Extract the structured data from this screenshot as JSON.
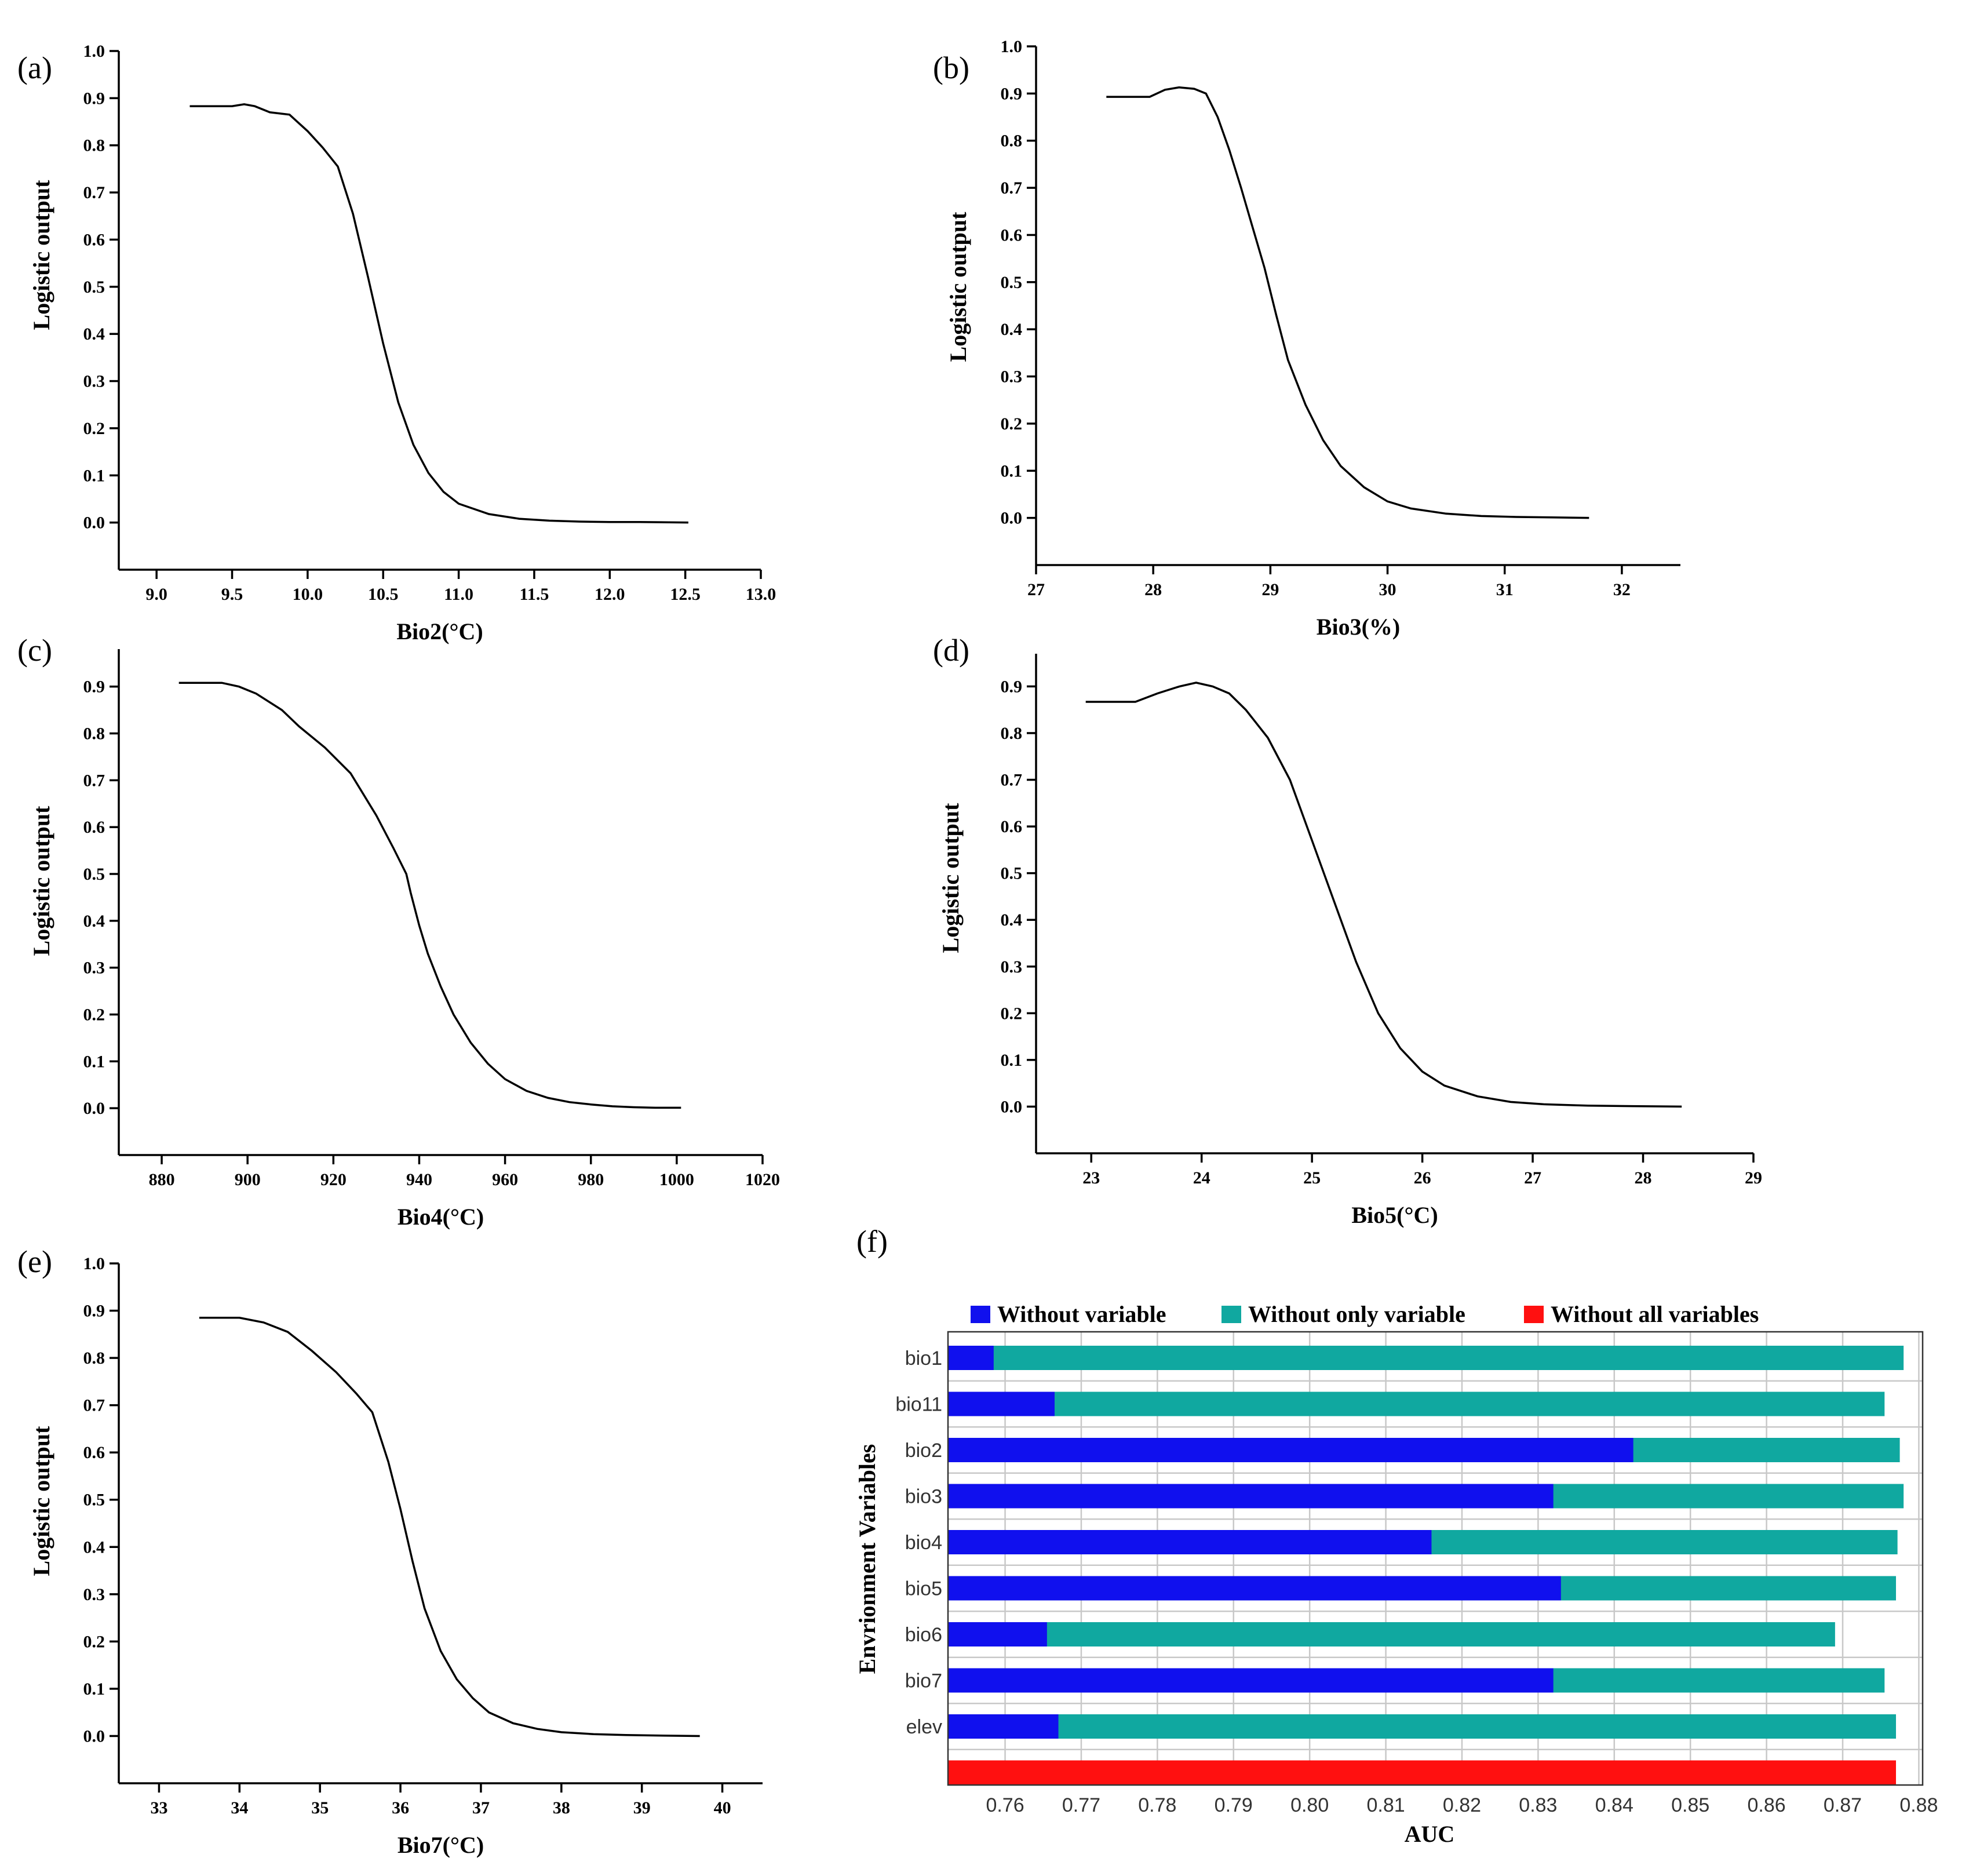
{
  "colors": {
    "without_variable": "#1010ee",
    "without_only_variable": "#10a8a0",
    "without_all_variables": "#ff1010"
  },
  "chart_data": [
    {
      "type": "line",
      "panel": "(a)",
      "xlabel": "Bio2(°C)",
      "ylabel": "Logistic output",
      "xlim": [
        8.75,
        13.0
      ],
      "ylim": [
        -0.1,
        1.0
      ],
      "xticks": [
        "9.0",
        "9.5",
        "10.0",
        "10.5",
        "11.0",
        "11.5",
        "12.0",
        "12.5",
        "13.0"
      ],
      "yticks": [
        "0.0",
        "0.1",
        "0.2",
        "0.3",
        "0.4",
        "0.5",
        "0.6",
        "0.7",
        "0.8",
        "0.9",
        "1.0"
      ],
      "x": [
        9.22,
        9.5,
        9.58,
        9.65,
        9.75,
        9.88,
        10.0,
        10.1,
        10.2,
        10.3,
        10.4,
        10.5,
        10.6,
        10.7,
        10.8,
        10.9,
        11.0,
        11.2,
        11.4,
        11.6,
        11.8,
        12.0,
        12.2,
        12.52
      ],
      "y": [
        0.883,
        0.883,
        0.887,
        0.883,
        0.87,
        0.865,
        0.83,
        0.795,
        0.755,
        0.655,
        0.52,
        0.38,
        0.255,
        0.165,
        0.105,
        0.065,
        0.04,
        0.018,
        0.008,
        0.004,
        0.002,
        0.001,
        0.001,
        0.0
      ]
    },
    {
      "type": "line",
      "panel": "(b)",
      "xlabel": "Bio3(%)",
      "ylabel": "Logistic output",
      "xlim": [
        27.0,
        32.5
      ],
      "ylim": [
        -0.1,
        1.0
      ],
      "xticks": [
        "27",
        "28",
        "29",
        "30",
        "31",
        "32"
      ],
      "yticks": [
        "0.0",
        "0.1",
        "0.2",
        "0.3",
        "0.4",
        "0.5",
        "0.6",
        "0.7",
        "0.8",
        "0.9",
        "1.0"
      ],
      "x": [
        27.6,
        27.97,
        28.1,
        28.22,
        28.35,
        28.45,
        28.55,
        28.65,
        28.75,
        28.85,
        28.95,
        29.05,
        29.15,
        29.3,
        29.45,
        29.6,
        29.8,
        30.0,
        30.2,
        30.5,
        30.8,
        31.1,
        31.4,
        31.72
      ],
      "y": [
        0.893,
        0.893,
        0.908,
        0.913,
        0.91,
        0.9,
        0.85,
        0.78,
        0.7,
        0.615,
        0.53,
        0.43,
        0.335,
        0.24,
        0.165,
        0.11,
        0.065,
        0.035,
        0.02,
        0.009,
        0.004,
        0.002,
        0.001,
        0.0
      ]
    },
    {
      "type": "line",
      "panel": "(c)",
      "xlabel": "Bio4(°C)",
      "ylabel": "Logistic output",
      "xlim": [
        870,
        1020
      ],
      "ylim": [
        -0.1,
        0.98
      ],
      "xticks": [
        "880",
        "900",
        "920",
        "940",
        "960",
        "980",
        "1000",
        "1020"
      ],
      "yticks": [
        "0.0",
        "0.1",
        "0.2",
        "0.3",
        "0.4",
        "0.5",
        "0.6",
        "0.7",
        "0.8",
        "0.9"
      ],
      "x": [
        884,
        894,
        898,
        902,
        908,
        912,
        918,
        924,
        930,
        934,
        937,
        938,
        940,
        942,
        945,
        948,
        952,
        956,
        960,
        965,
        970,
        975,
        980,
        985,
        990,
        995,
        1001
      ],
      "y": [
        0.908,
        0.908,
        0.9,
        0.885,
        0.85,
        0.815,
        0.77,
        0.715,
        0.625,
        0.555,
        0.5,
        0.46,
        0.39,
        0.33,
        0.26,
        0.2,
        0.14,
        0.095,
        0.062,
        0.037,
        0.022,
        0.013,
        0.008,
        0.004,
        0.002,
        0.001,
        0.001
      ]
    },
    {
      "type": "line",
      "panel": "(d)",
      "xlabel": "Bio5(°C)",
      "ylabel": "Logistic output",
      "xlim": [
        22.5,
        29.0
      ],
      "ylim": [
        -0.1,
        0.97
      ],
      "xticks": [
        "23",
        "24",
        "25",
        "26",
        "27",
        "28",
        "29"
      ],
      "yticks": [
        "0.0",
        "0.1",
        "0.2",
        "0.3",
        "0.4",
        "0.5",
        "0.6",
        "0.7",
        "0.8",
        "0.9"
      ],
      "x": [
        22.95,
        23.4,
        23.6,
        23.8,
        23.95,
        24.1,
        24.25,
        24.4,
        24.6,
        24.8,
        25.0,
        25.2,
        25.4,
        25.6,
        25.8,
        26.0,
        26.2,
        26.5,
        26.8,
        27.1,
        27.5,
        27.9,
        28.35
      ],
      "y": [
        0.867,
        0.867,
        0.885,
        0.9,
        0.908,
        0.9,
        0.885,
        0.85,
        0.79,
        0.7,
        0.57,
        0.44,
        0.31,
        0.2,
        0.125,
        0.075,
        0.045,
        0.022,
        0.01,
        0.005,
        0.002,
        0.001,
        0.0
      ]
    },
    {
      "type": "line",
      "panel": "(e)",
      "xlabel": "Bio7(°C)",
      "ylabel": "Logistic output",
      "xlim": [
        32.5,
        40.5
      ],
      "ylim": [
        -0.1,
        1.0
      ],
      "xticks": [
        "33",
        "34",
        "35",
        "36",
        "37",
        "38",
        "39",
        "40"
      ],
      "yticks": [
        "0.0",
        "0.1",
        "0.2",
        "0.3",
        "0.4",
        "0.5",
        "0.6",
        "0.7",
        "0.8",
        "0.9",
        "1.0"
      ],
      "x": [
        33.5,
        34.0,
        34.3,
        34.6,
        34.9,
        35.2,
        35.45,
        35.65,
        35.85,
        36.0,
        36.15,
        36.3,
        36.5,
        36.7,
        36.9,
        37.1,
        37.4,
        37.7,
        38.0,
        38.4,
        38.8,
        39.2,
        39.72
      ],
      "y": [
        0.885,
        0.885,
        0.875,
        0.855,
        0.815,
        0.77,
        0.725,
        0.685,
        0.58,
        0.48,
        0.37,
        0.27,
        0.18,
        0.12,
        0.08,
        0.05,
        0.027,
        0.015,
        0.008,
        0.004,
        0.002,
        0.001,
        0.0
      ]
    },
    {
      "type": "bar",
      "orientation": "horizontal",
      "panel": "(f)",
      "xlabel": "AUC",
      "ylabel": "Envrionment Variables",
      "xlim": [
        0.7525,
        0.8805
      ],
      "xticks": [
        "0.76",
        "0.77",
        "0.78",
        "0.79",
        "0.80",
        "0.81",
        "0.82",
        "0.83",
        "0.84",
        "0.85",
        "0.86",
        "0.87",
        "0.88"
      ],
      "legend": [
        "Without variable",
        "Without only variable",
        "Without all variables"
      ],
      "categories": [
        "bio1",
        "bio11",
        "bio2",
        "bio3",
        "bio4",
        "bio5",
        "bio6",
        "bio7",
        "elev"
      ],
      "series": [
        {
          "name": "Without variable",
          "values": [
            0.7585,
            0.7665,
            0.8425,
            0.832,
            0.816,
            0.833,
            0.7655,
            0.832,
            0.767
          ]
        },
        {
          "name": "Without only variable",
          "values": [
            0.878,
            0.8755,
            0.8775,
            0.878,
            0.8772,
            0.877,
            0.869,
            0.8755,
            0.877
          ]
        }
      ],
      "without_all_variables": 0.877
    }
  ]
}
